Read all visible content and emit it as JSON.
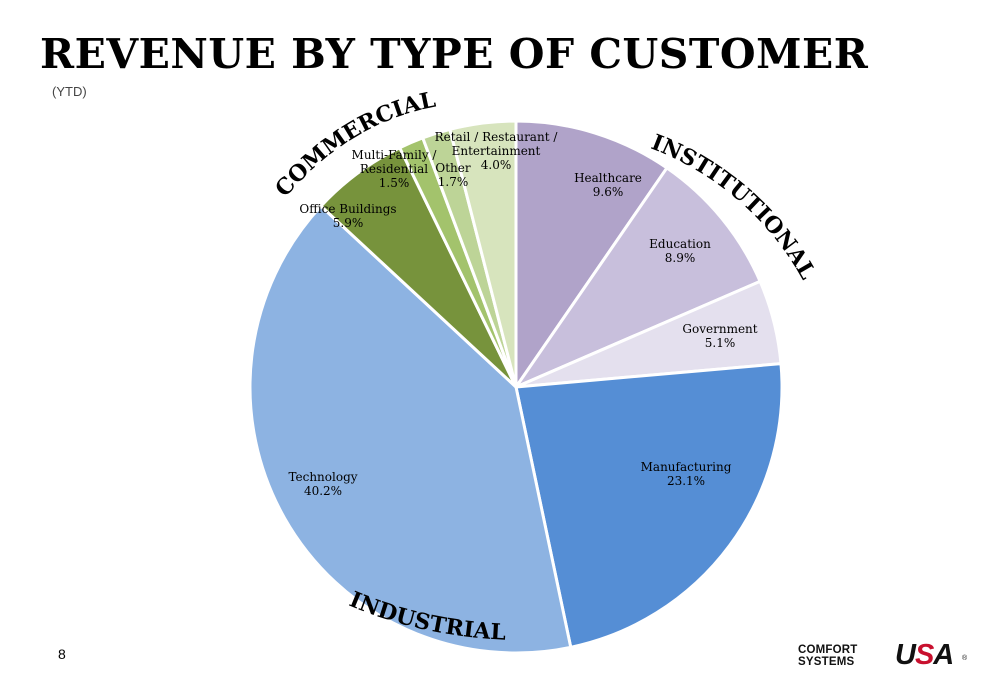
{
  "page": {
    "title": "REVENUE BY TYPE OF CUSTOMER",
    "subtitle": "(YTD)",
    "page_number": "8"
  },
  "logo": {
    "line1": "COMFORT",
    "line2": "SYSTEMS",
    "usa_u": "U",
    "usa_s": "S",
    "usa_a": "A",
    "registered": "®",
    "colors": {
      "text": "#111111",
      "accent": "#c8102e"
    }
  },
  "chart_data": {
    "type": "pie",
    "title": "REVENUE BY TYPE OF CUSTOMER",
    "subtitle": "(YTD)",
    "unit": "%",
    "start_angle_deg": 0,
    "direction": "clockwise",
    "slices": [
      {
        "label": [
          "Healthcare"
        ],
        "value": 9.6,
        "display": "9.6%",
        "color": "#b0a3c9"
      },
      {
        "label": [
          "Education"
        ],
        "value": 8.9,
        "display": "8.9%",
        "color": "#c8bfdc"
      },
      {
        "label": [
          "Government"
        ],
        "value": 5.1,
        "display": "5.1%",
        "color": "#e4e0ee"
      },
      {
        "label": [
          "Manufacturing"
        ],
        "value": 23.1,
        "display": "23.1%",
        "color": "#558ed5"
      },
      {
        "label": [
          "Technology"
        ],
        "value": 40.2,
        "display": "40.2%",
        "color": "#8db3e2"
      },
      {
        "label": [
          "Office Buildings"
        ],
        "value": 5.9,
        "display": "5.9%",
        "color": "#77933c"
      },
      {
        "label": [
          "Multi-Family /",
          "Residential"
        ],
        "value": 1.5,
        "display": "1.5%",
        "color": "#a3c36c"
      },
      {
        "label": [
          "Other"
        ],
        "value": 1.7,
        "display": "1.7%",
        "color": "#bdd497"
      },
      {
        "label": [
          "Retail / Restaurant /",
          "Entertainment"
        ],
        "value": 4.0,
        "display": "4.0%",
        "color": "#d7e4bd"
      }
    ],
    "groups": [
      {
        "name": "INSTITUTIONAL",
        "slices": [
          "Healthcare",
          "Education",
          "Government"
        ]
      },
      {
        "name": "INDUSTRIAL",
        "slices": [
          "Manufacturing",
          "Technology"
        ]
      },
      {
        "name": "COMMERCIAL",
        "slices": [
          "Office Buildings",
          "Multi-Family / Residential",
          "Other",
          "Retail / Restaurant / Entertainment"
        ]
      }
    ],
    "legend": "none"
  }
}
